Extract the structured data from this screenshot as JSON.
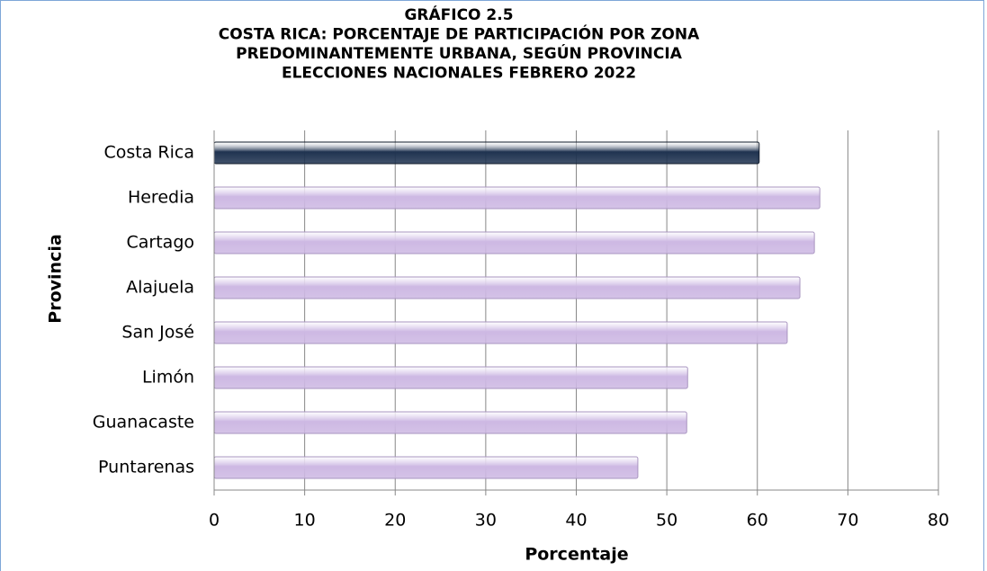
{
  "chart_data": {
    "type": "barh",
    "title": [
      "GRÁFICO 2.5",
      "COSTA RICA: PORCENTAJE DE PARTICIPACIÓN POR ZONA",
      "PREDOMINANTEMENTE URBANA, SEGÚN PROVINCIA",
      "ELECCIONES NACIONALES FEBRERO 2022"
    ],
    "x_label": "Porcentaje",
    "y_label": "Provincia",
    "categories": [
      "Costa Rica",
      "Heredia",
      "Cartago",
      "Alajuela",
      "San José",
      "Limón",
      "Guanacaste",
      "Puntarenas"
    ],
    "values": [
      60.2,
      66.9,
      66.3,
      64.7,
      63.3,
      52.3,
      52.2,
      46.8
    ],
    "colors": [
      "#1f3350",
      "#cdb8e3",
      "#cdb8e3",
      "#cdb8e3",
      "#cdb8e3",
      "#cdb8e3",
      "#cdb8e3",
      "#cdb8e3"
    ],
    "xlim": [
      0,
      80
    ],
    "xticks": [
      0,
      10,
      20,
      30,
      40,
      50,
      60,
      70,
      80
    ],
    "grid": true
  }
}
